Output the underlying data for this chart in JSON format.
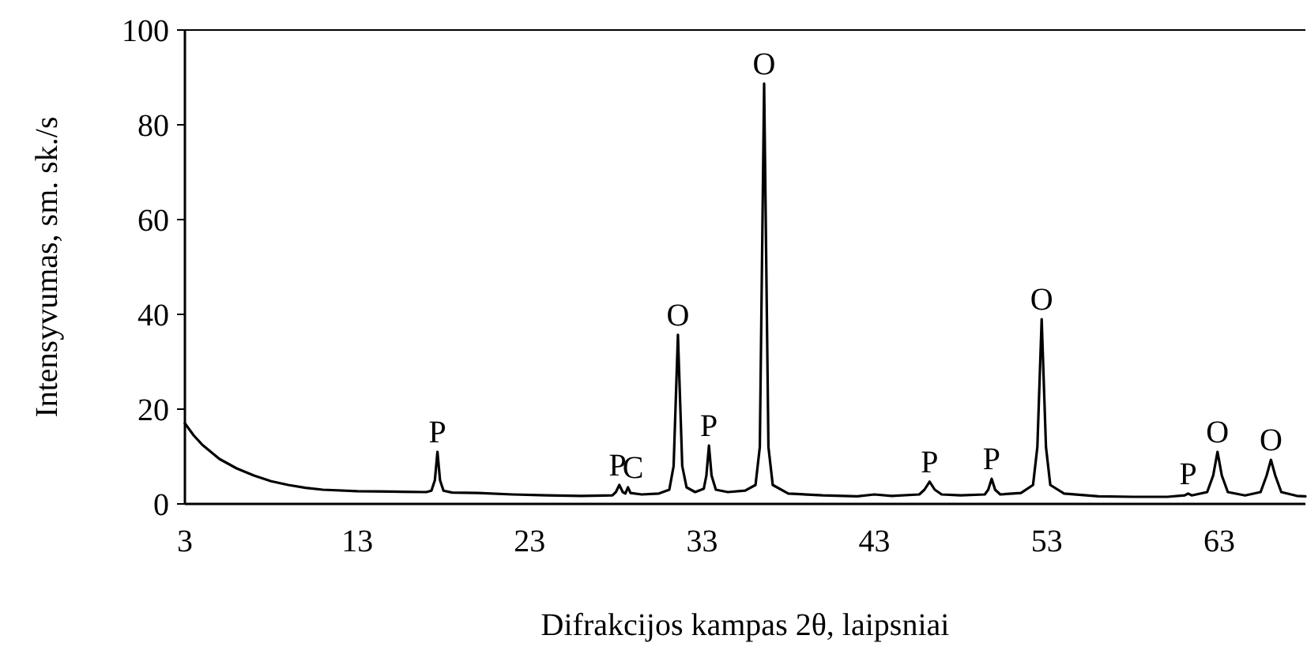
{
  "chart_data": {
    "type": "line",
    "xlabel": "Difrakcijos  kampas 2θ, laipsniai",
    "ylabel": "Intensyvumas, sm. sk./s",
    "xlim": [
      3,
      68
    ],
    "xticks": [
      3,
      13,
      23,
      33,
      43,
      53,
      63
    ],
    "ylim": [
      0,
      100
    ],
    "yticks": [
      0,
      20,
      40,
      60,
      80,
      100
    ],
    "grid": false,
    "marker": "none",
    "line_style": "solid",
    "series": [
      {
        "color": "#000000",
        "x": [
          3,
          3.5,
          4,
          4.5,
          5,
          5.5,
          6,
          7,
          8,
          9,
          10,
          11,
          13,
          15,
          17,
          17.3,
          17.5,
          17.65,
          17.8,
          18,
          18.5,
          20,
          22,
          24,
          26,
          27.8,
          28.0,
          28.2,
          28.4,
          28.55,
          28.7,
          28.85,
          29.5,
          30.5,
          31.1,
          31.35,
          31.6,
          31.85,
          32.1,
          32.6,
          33.1,
          33.25,
          33.4,
          33.55,
          33.8,
          34.5,
          35.5,
          36.1,
          36.35,
          36.6,
          36.85,
          37.1,
          38,
          40,
          42,
          43,
          44,
          45.6,
          45.9,
          46.2,
          46.5,
          46.9,
          48,
          49.4,
          49.6,
          49.8,
          50,
          50.3,
          51.5,
          52.2,
          52.45,
          52.7,
          52.95,
          53.2,
          54,
          56,
          58,
          60,
          61,
          61.2,
          61.4,
          62.3,
          62.65,
          62.9,
          63.15,
          63.5,
          64.5,
          65.4,
          65.75,
          66,
          66.25,
          66.6,
          67.5,
          68
        ],
        "values": [
          17,
          14.5,
          12.5,
          11,
          9.5,
          8.5,
          7.5,
          6,
          4.8,
          4,
          3.4,
          3,
          2.7,
          2.6,
          2.5,
          2.8,
          5,
          11,
          5,
          2.8,
          2.4,
          2.3,
          2,
          1.8,
          1.7,
          1.8,
          2.5,
          4,
          2.5,
          2.2,
          3.5,
          2.3,
          2,
          2.2,
          3,
          8,
          35.7,
          8,
          3.5,
          2.5,
          3.2,
          6,
          12.3,
          6,
          3,
          2.5,
          2.8,
          4,
          12,
          88.7,
          12,
          4,
          2.2,
          1.8,
          1.6,
          2,
          1.7,
          2,
          3,
          4.7,
          3,
          2,
          1.8,
          2,
          3,
          5.3,
          3,
          2,
          2.3,
          4,
          12,
          39,
          12,
          4,
          2.2,
          1.6,
          1.5,
          1.5,
          1.8,
          2.2,
          1.8,
          2.5,
          6,
          11,
          6,
          2.5,
          1.8,
          2.5,
          6,
          9.3,
          6,
          2.5,
          1.7,
          1.6
        ]
      }
    ],
    "annotations": [
      {
        "text": "P",
        "x": 17.65,
        "y": 11
      },
      {
        "text": "P",
        "x": 28.1,
        "y": 4
      },
      {
        "text": "C",
        "x": 29,
        "y": 3.5
      },
      {
        "text": "O",
        "x": 31.6,
        "y": 35.7
      },
      {
        "text": "P",
        "x": 33.4,
        "y": 12.3
      },
      {
        "text": "O",
        "x": 36.6,
        "y": 88.7
      },
      {
        "text": "P",
        "x": 46.2,
        "y": 4.7
      },
      {
        "text": "P",
        "x": 49.8,
        "y": 5.3
      },
      {
        "text": "O",
        "x": 52.7,
        "y": 39
      },
      {
        "text": "P",
        "x": 61.2,
        "y": 2.2
      },
      {
        "text": "O",
        "x": 62.9,
        "y": 11
      },
      {
        "text": "O",
        "x": 66,
        "y": 9.3
      }
    ]
  }
}
